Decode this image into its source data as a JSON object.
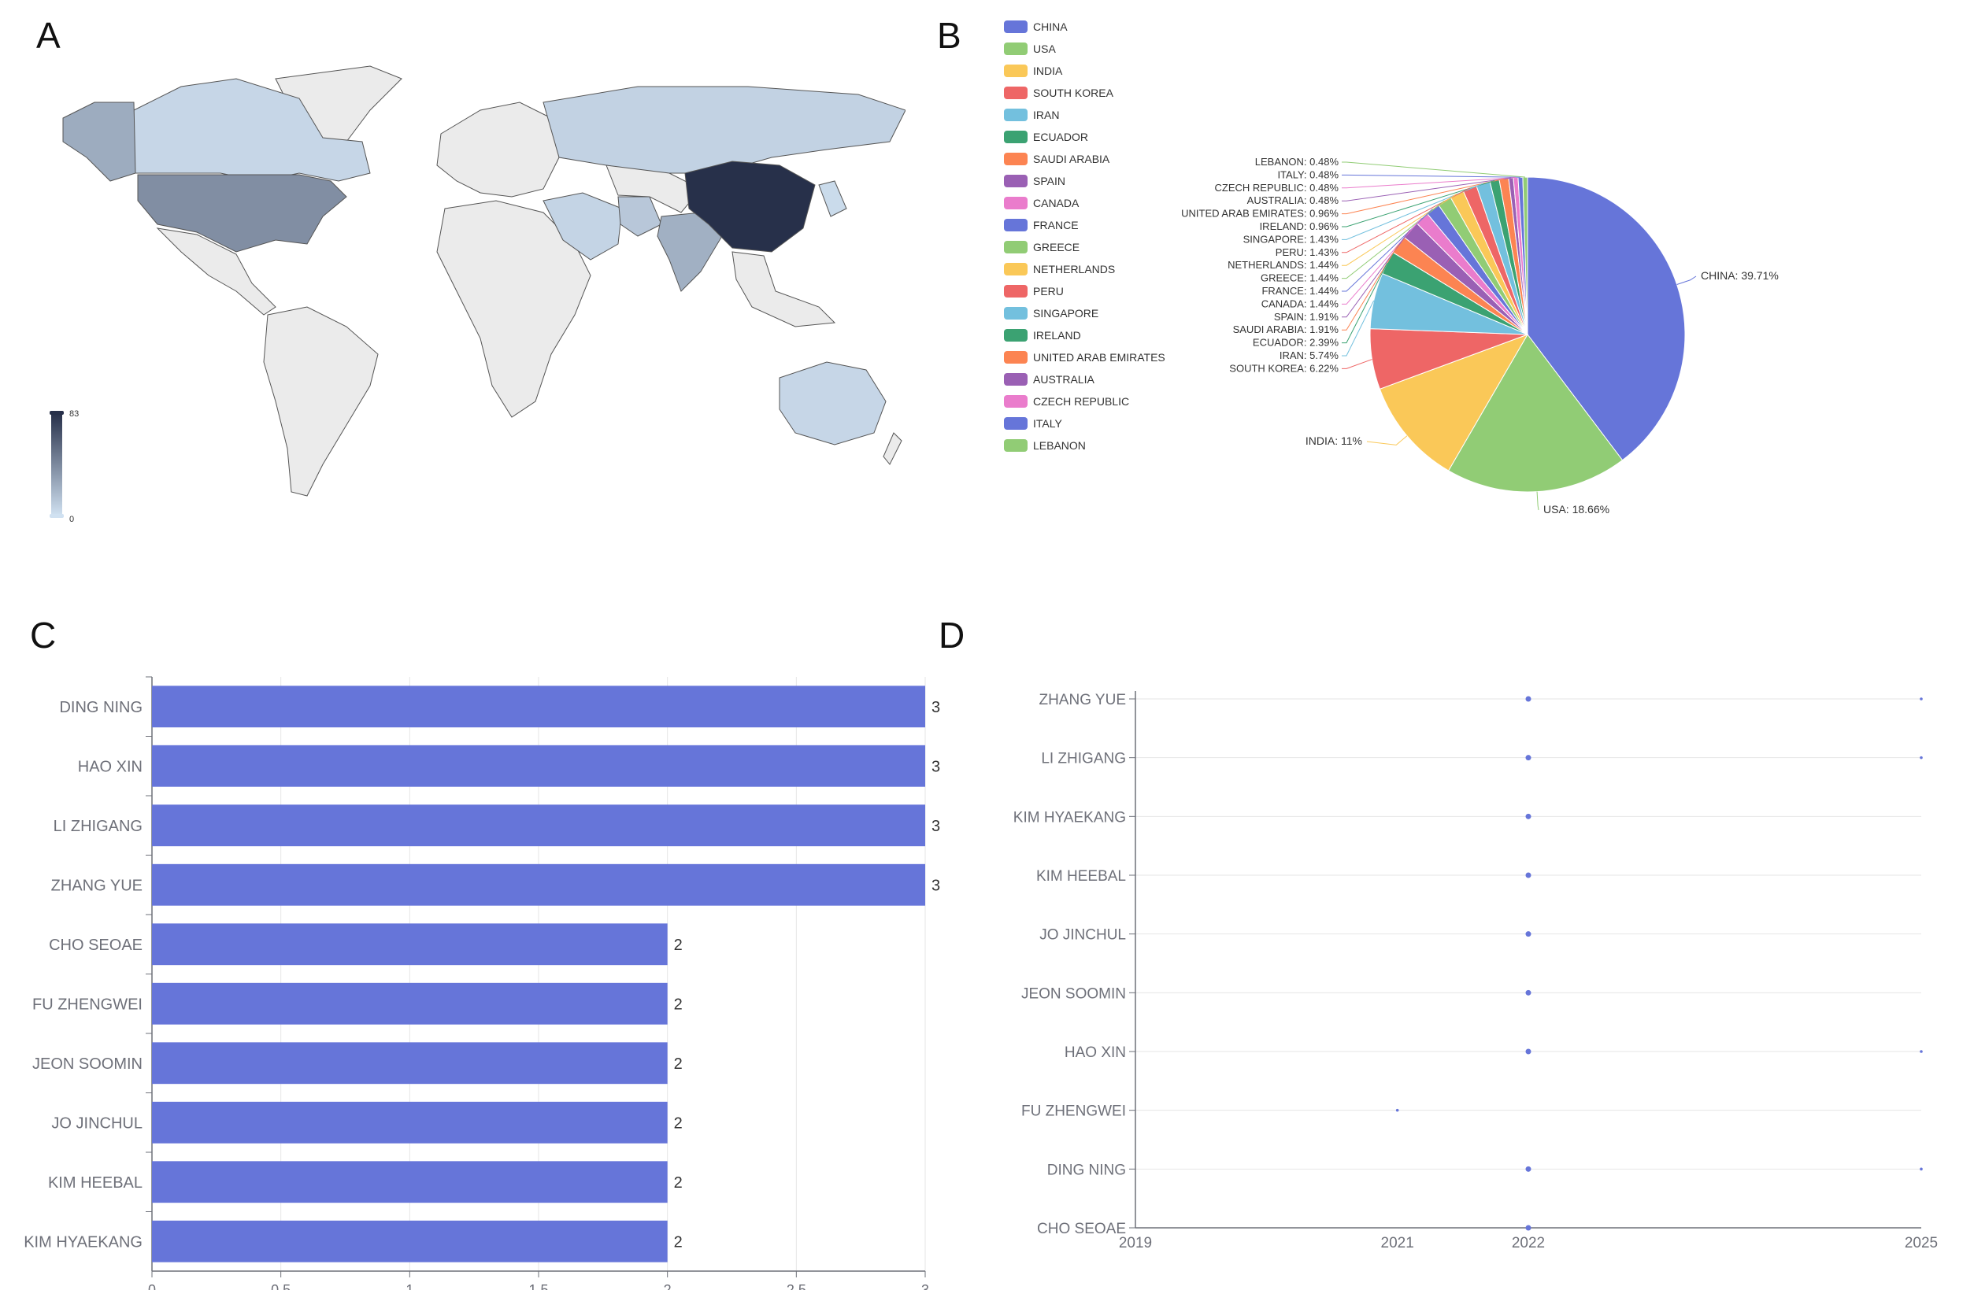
{
  "panels": {
    "a": "A",
    "b": "B",
    "c": "C",
    "d": "D"
  },
  "chart_data": [
    {
      "type": "choropleth-map",
      "panel": "A",
      "visual_map": {
        "min": 0,
        "max": 83,
        "min_label": "0",
        "max_label": "83",
        "low_color": "#d0e1f1",
        "high_color": "#27304a"
      },
      "countries": [
        {
          "name": "CHINA",
          "value": 83
        },
        {
          "name": "USA",
          "value": 39
        },
        {
          "name": "INDIA",
          "value": 23
        },
        {
          "name": "SOUTH KOREA",
          "value": 13
        },
        {
          "name": "IRAN",
          "value": 12
        }
      ],
      "no_data_color": "#ebebeb"
    },
    {
      "type": "pie",
      "panel": "B",
      "colors": [
        "#6675d9",
        "#91cc75",
        "#fac858",
        "#ee6666",
        "#73c0de",
        "#3ba272",
        "#fc8452",
        "#9a60b4",
        "#ea7ccc"
      ],
      "legend_position": "left",
      "slices": [
        {
          "label": "CHINA",
          "value": 39.71,
          "slice_label": "CHINA: 39.71%"
        },
        {
          "label": "USA",
          "value": 18.66,
          "slice_label": "USA: 18.66%"
        },
        {
          "label": "INDIA",
          "value": 11,
          "slice_label": "INDIA: 11%"
        },
        {
          "label": "SOUTH KOREA",
          "value": 6.22,
          "slice_label": "SOUTH KOREA: 6.22%"
        },
        {
          "label": "IRAN",
          "value": 5.74,
          "slice_label": "IRAN: 5.74%"
        },
        {
          "label": "ECUADOR",
          "value": 2.39,
          "slice_label": "ECUADOR: 2.39%"
        },
        {
          "label": "SAUDI ARABIA",
          "value": 1.91,
          "slice_label": "SAUDI ARABIA: 1.91%"
        },
        {
          "label": "SPAIN",
          "value": 1.91,
          "slice_label": "SPAIN: 1.91%"
        },
        {
          "label": "CANADA",
          "value": 1.44,
          "slice_label": "CANADA: 1.44%"
        },
        {
          "label": "FRANCE",
          "value": 1.44,
          "slice_label": "FRANCE: 1.44%"
        },
        {
          "label": "GREECE",
          "value": 1.44,
          "slice_label": "GREECE: 1.44%"
        },
        {
          "label": "NETHERLANDS",
          "value": 1.44,
          "slice_label": "NETHERLANDS: 1.44%"
        },
        {
          "label": "PERU",
          "value": 1.43,
          "slice_label": "PERU: 1.43%"
        },
        {
          "label": "SINGAPORE",
          "value": 1.43,
          "slice_label": "SINGAPORE: 1.43%"
        },
        {
          "label": "IRELAND",
          "value": 0.96,
          "slice_label": "IRELAND: 0.96%"
        },
        {
          "label": "UNITED ARAB EMIRATES",
          "value": 0.96,
          "slice_label": "UNITED ARAB EMIRATES: 0.96%"
        },
        {
          "label": "AUSTRALIA",
          "value": 0.48,
          "slice_label": "AUSTRALIA: 0.48%"
        },
        {
          "label": "CZECH REPUBLIC",
          "value": 0.48,
          "slice_label": "CZECH REPUBLIC: 0.48%"
        },
        {
          "label": "ITALY",
          "value": 0.48,
          "slice_label": "ITALY: 0.48%"
        },
        {
          "label": "LEBANON",
          "value": 0.48,
          "slice_label": "LEBANON: 0.48%"
        }
      ]
    },
    {
      "type": "bar",
      "panel": "C",
      "orientation": "horizontal",
      "color": "#6675d9",
      "categories": [
        "DING NING",
        "HAO XIN",
        "LI ZHIGANG",
        "ZHANG YUE",
        "CHO SEOAE",
        "FU ZHENGWEI",
        "JEON SOOMIN",
        "JO JINCHUL",
        "KIM HEEBAL",
        "KIM HYAEKANG"
      ],
      "values": [
        3,
        3,
        3,
        3,
        2,
        2,
        2,
        2,
        2,
        2
      ],
      "xlim": [
        0,
        3
      ],
      "xticks": [
        "0",
        "0.5",
        "1",
        "1.5",
        "2",
        "2.5",
        "3"
      ]
    },
    {
      "type": "scatter",
      "panel": "D",
      "color": "#6675d9",
      "categories": [
        "ZHANG YUE",
        "LI ZHIGANG",
        "KIM HYAEKANG",
        "KIM HEEBAL",
        "JO JINCHUL",
        "JEON SOOMIN",
        "HAO XIN",
        "FU ZHENGWEI",
        "DING NING",
        "CHO SEOAE"
      ],
      "xlim": [
        2019,
        2025
      ],
      "xticks": [
        "2019",
        "2021",
        "2022",
        "2025"
      ],
      "points": [
        {
          "author": "ZHANG YUE",
          "year": 2022,
          "size": "medium"
        },
        {
          "author": "ZHANG YUE",
          "year": 2025,
          "size": "small"
        },
        {
          "author": "LI ZHIGANG",
          "year": 2022,
          "size": "medium"
        },
        {
          "author": "LI ZHIGANG",
          "year": 2025,
          "size": "small"
        },
        {
          "author": "KIM HYAEKANG",
          "year": 2022,
          "size": "medium"
        },
        {
          "author": "KIM HEEBAL",
          "year": 2022,
          "size": "medium"
        },
        {
          "author": "JO JINCHUL",
          "year": 2022,
          "size": "medium"
        },
        {
          "author": "JEON SOOMIN",
          "year": 2022,
          "size": "medium"
        },
        {
          "author": "HAO XIN",
          "year": 2022,
          "size": "medium"
        },
        {
          "author": "HAO XIN",
          "year": 2025,
          "size": "small"
        },
        {
          "author": "FU ZHENGWEI",
          "year": 2021,
          "size": "small"
        },
        {
          "author": "DING NING",
          "year": 2022,
          "size": "medium"
        },
        {
          "author": "DING NING",
          "year": 2025,
          "size": "small"
        },
        {
          "author": "CHO SEOAE",
          "year": 2022,
          "size": "medium"
        }
      ]
    }
  ]
}
